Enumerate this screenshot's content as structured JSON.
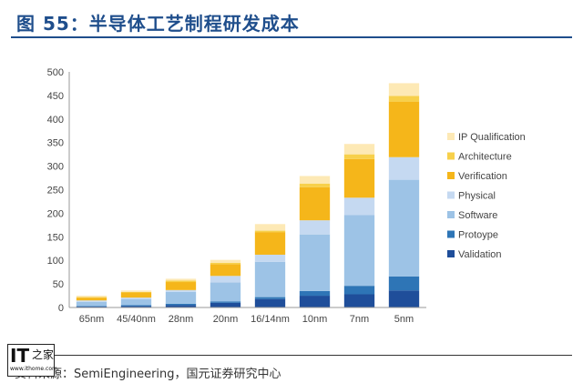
{
  "header": {
    "title": "图 55：半导体工艺制程研发成本"
  },
  "footer": {
    "source": "资料来源：SemiEngineering，国元证券研究中心"
  },
  "logo": {
    "mark": "IT",
    "text": "之家",
    "site": "www.ithome.com"
  },
  "colors": {
    "Validation": "#1f4e9a",
    "Protoype": "#2e75b6",
    "Software": "#9dc3e6",
    "Physical": "#c5d9f1",
    "Verification": "#f5b61a",
    "Architecture": "#f7d04b",
    "IP Qualification": "#fde9b5"
  },
  "chart_data": {
    "type": "bar",
    "stacked": true,
    "title": "",
    "xlabel": "",
    "ylabel": "",
    "ylim": [
      0,
      500
    ],
    "yticks": [
      0,
      50,
      100,
      150,
      200,
      250,
      300,
      350,
      400,
      450,
      500
    ],
    "categories": [
      "65nm",
      "45/40nm",
      "28nm",
      "20nm",
      "16/14nm",
      "10nm",
      "7nm",
      "5nm"
    ],
    "legend_position": "right",
    "series": [
      {
        "name": "Validation",
        "values": [
          2,
          3,
          5,
          10,
          18,
          25,
          28,
          36
        ]
      },
      {
        "name": "Protoype",
        "values": [
          1,
          2,
          3,
          3,
          4,
          10,
          18,
          30
        ]
      },
      {
        "name": "Software",
        "values": [
          9,
          13,
          25,
          40,
          75,
          120,
          150,
          205
        ]
      },
      {
        "name": "Physical",
        "values": [
          3,
          3,
          4,
          14,
          15,
          30,
          37,
          48
        ]
      },
      {
        "name": "Verification",
        "values": [
          6,
          11,
          17,
          25,
          48,
          70,
          82,
          118
        ]
      },
      {
        "name": "Architecture",
        "values": [
          1,
          1,
          3,
          3,
          3,
          8,
          10,
          12
        ]
      },
      {
        "name": "IP Qualification",
        "values": [
          3,
          3,
          4,
          6,
          14,
          16,
          22,
          27
        ]
      }
    ]
  }
}
